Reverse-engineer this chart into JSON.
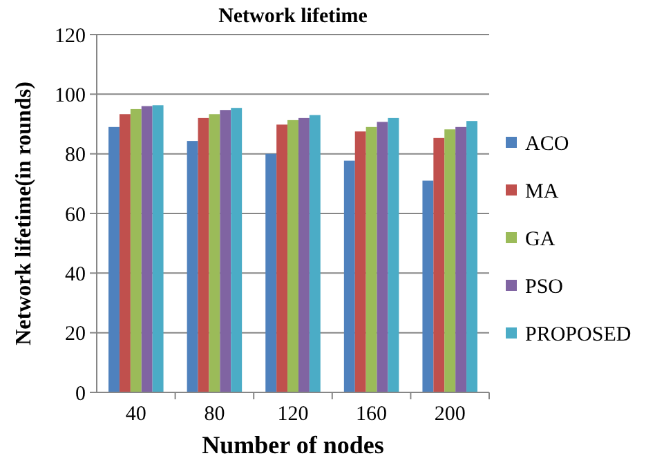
{
  "chart_data": {
    "type": "bar",
    "title": "Network lifetime",
    "xlabel": "Number of nodes",
    "ylabel": "Network lifetime(in rounds)",
    "categories": [
      "40",
      "80",
      "120",
      "160",
      "200"
    ],
    "series": [
      {
        "name": "ACO",
        "color": "#4f81bd",
        "values": [
          89,
          84.3,
          80,
          77.7,
          71
        ]
      },
      {
        "name": "MA",
        "color": "#c0504d",
        "values": [
          93.3,
          92,
          89.8,
          87.5,
          85.3
        ]
      },
      {
        "name": "GA",
        "color": "#9bbb59",
        "values": [
          95,
          93.3,
          91.3,
          89,
          88.2
        ]
      },
      {
        "name": "PSO",
        "color": "#8064a2",
        "values": [
          96,
          94.7,
          92,
          90.7,
          89
        ]
      },
      {
        "name": "PROPOSED",
        "color": "#4bacc6",
        "values": [
          96.3,
          95.4,
          93,
          92,
          91
        ]
      }
    ],
    "ylim": [
      0,
      120
    ],
    "yticks": [
      0,
      20,
      40,
      60,
      80,
      100,
      120
    ],
    "grid": "y",
    "legend": "right"
  }
}
